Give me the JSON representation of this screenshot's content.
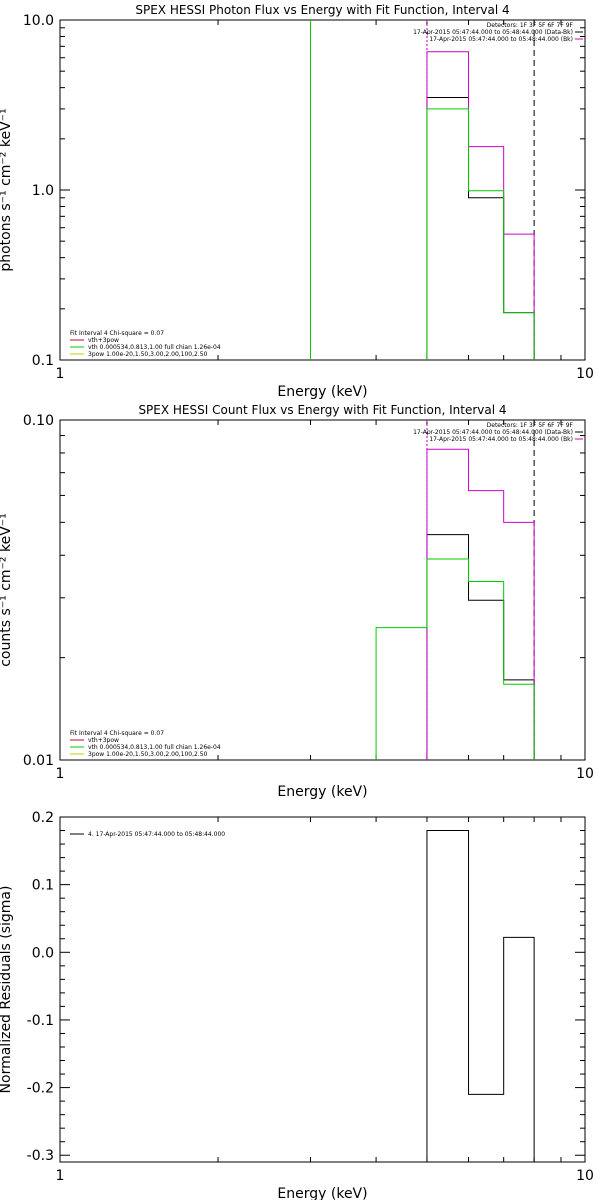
{
  "chart_data": [
    {
      "type": "line",
      "title": "SPEX HESSI Photon Flux vs Energy with Fit Function, Interval 4",
      "xlabel": "Energy (keV)",
      "ylabel": "photons s⁻¹ cm⁻² keV⁻¹",
      "xscale": "log",
      "yscale": "log",
      "xlim": [
        1,
        10
      ],
      "ylim": [
        0.1,
        10
      ],
      "x_ticks": [
        {
          "value": 1,
          "label": "1"
        },
        {
          "value": 10,
          "label": "10"
        }
      ],
      "y_ticks": [
        {
          "value": 0.1,
          "label": "0.1"
        },
        {
          "value": 1,
          "label": "1.0"
        },
        {
          "value": 10,
          "label": "10.0"
        }
      ],
      "header_lines": [
        "Detectors: 1F 3F 5F 6F 7F 9F",
        "17-Apr-2015 05:47:44.000 to 05:48:44.000 (Data-Bk)",
        "17-Apr-2015 05:47:44.000 to 05:48:44.000 (Bk)"
      ],
      "header_colors": [
        "#000000",
        "#000000",
        "#cc00cc"
      ],
      "legend_lines": [
        "Fit Interval 4   Chi-square = 0.07",
        "vth+3pow",
        "vth 0.000534,0.813,1.00  full chian 1.26e-04",
        "3pow 1.00e-20,1.50,3.00,2.00,100,2.50"
      ],
      "legend_colors": [
        "",
        "#cc0033",
        "#00cc00",
        "#cccc00"
      ],
      "vlines": [
        {
          "x": 3.0,
          "color": "#00cc00",
          "style": "solid"
        },
        {
          "x": 5.0,
          "color": "#00aa00",
          "style": "dotted"
        },
        {
          "x": 5.0,
          "color": "#cc00cc",
          "style": "dotted"
        },
        {
          "x": 8.0,
          "color": "#000000",
          "style": "dashed"
        }
      ],
      "series": [
        {
          "name": "Data-Bk",
          "color": "#000000",
          "edges": [
            5,
            6,
            7,
            8
          ],
          "values": [
            3.5,
            0.9,
            0.19
          ]
        },
        {
          "name": "Bk",
          "color": "#cc00cc",
          "edges": [
            5,
            6,
            7,
            8
          ],
          "values": [
            6.5,
            1.8,
            0.55
          ]
        },
        {
          "name": "vth+3pow",
          "color": "#00cc00",
          "edges": [
            5,
            6,
            7,
            8
          ],
          "values": [
            3.0,
            0.99,
            0.19
          ]
        }
      ]
    },
    {
      "type": "line",
      "title": "SPEX HESSI Count Flux vs Energy with Fit Function, Interval 4",
      "xlabel": "Energy (keV)",
      "ylabel": "counts s⁻¹ cm⁻² keV⁻¹",
      "xscale": "log",
      "yscale": "log",
      "xlim": [
        1,
        10
      ],
      "ylim": [
        0.01,
        0.1
      ],
      "x_ticks": [
        {
          "value": 1,
          "label": "1"
        },
        {
          "value": 10,
          "label": "10"
        }
      ],
      "y_ticks": [
        {
          "value": 0.01,
          "label": "0.01"
        },
        {
          "value": 0.1,
          "label": "0.10"
        }
      ],
      "header_lines": [
        "Detectors: 1F 3F 5F 6F 7F 9F",
        "17-Apr-2015 05:47:44.000 to 05:48:44.000 (Data-Bk)",
        "17-Apr-2015 05:47:44.000 to 05:48:44.000 (Bk)"
      ],
      "header_colors": [
        "#000000",
        "#000000",
        "#cc00cc"
      ],
      "legend_lines": [
        "Fit Interval 4   Chi-square = 0.07",
        "vth+3pow",
        "vth 0.000534,0.813,1.00  full chian 1.26e-04",
        "3pow 1.00e-20,1.50,3.00,2.00,100,2.50"
      ],
      "legend_colors": [
        "",
        "#cc0033",
        "#00cc00",
        "#cccc00"
      ],
      "vlines": [
        {
          "x": 5.0,
          "color": "#00aa00",
          "style": "dotted"
        },
        {
          "x": 5.0,
          "color": "#cc00cc",
          "style": "dotted"
        },
        {
          "x": 8.0,
          "color": "#000000",
          "style": "dashed"
        }
      ],
      "series": [
        {
          "name": "Data-Bk",
          "color": "#000000",
          "edges": [
            5,
            6,
            7,
            8
          ],
          "values": [
            0.046,
            0.0295,
            0.0172
          ]
        },
        {
          "name": "Bk",
          "color": "#cc00cc",
          "edges": [
            5,
            6,
            7,
            8
          ],
          "values": [
            0.082,
            0.062,
            0.05
          ]
        },
        {
          "name": "vth+3pow",
          "color": "#00cc00",
          "edges": [
            4,
            5,
            6,
            7,
            8
          ],
          "values": [
            0.0245,
            0.039,
            0.0335,
            0.0167
          ]
        }
      ]
    },
    {
      "type": "line",
      "title": "",
      "xlabel": "Energy (keV)",
      "ylabel": "Normalized Residuals (sigma)",
      "xscale": "log",
      "yscale": "linear",
      "xlim": [
        1,
        10
      ],
      "ylim": [
        -0.31,
        0.2
      ],
      "x_ticks": [
        {
          "value": 1,
          "label": "1"
        },
        {
          "value": 10,
          "label": "10"
        }
      ],
      "y_ticks": [
        {
          "value": 0.2,
          "label": "0.2"
        },
        {
          "value": 0.1,
          "label": "0.1"
        },
        {
          "value": 0.0,
          "label": "0.0"
        },
        {
          "value": -0.1,
          "label": "-0.1"
        },
        {
          "value": -0.2,
          "label": "-0.2"
        },
        {
          "value": -0.3,
          "label": "-0.3"
        }
      ],
      "header_lines": [],
      "header_colors": [],
      "legend_lines": [
        "4. 17-Apr-2015 05:47:44.000 to 05:48:44.000"
      ],
      "legend_colors": [
        "#000000"
      ],
      "vlines": [],
      "series": [
        {
          "name": "4. 17-Apr-2015 05:47:44.000 to 05:48:44.000",
          "color": "#000000",
          "edges": [
            5,
            6,
            7,
            8
          ],
          "values": [
            0.18,
            -0.21,
            0.022
          ],
          "baseline": -0.31
        }
      ]
    }
  ]
}
